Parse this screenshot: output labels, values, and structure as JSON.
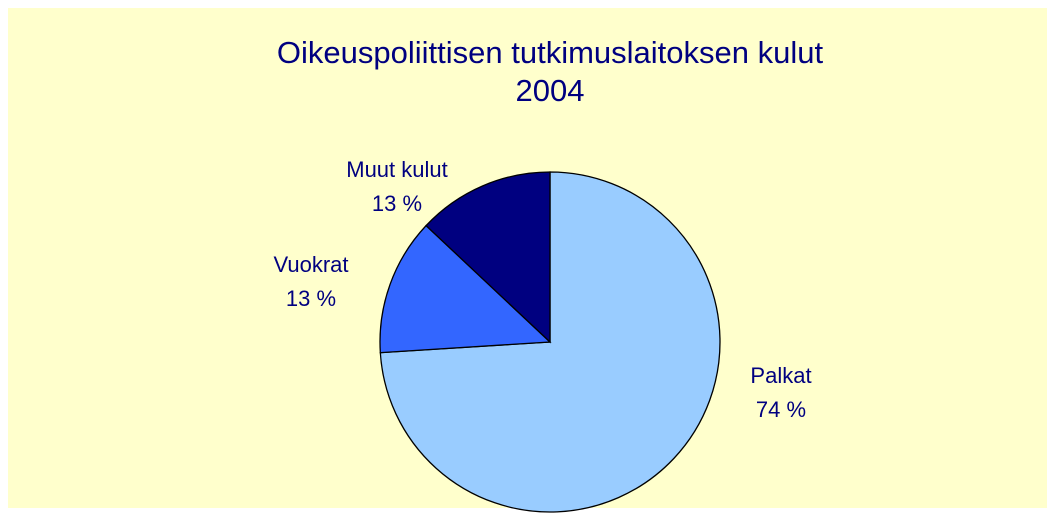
{
  "chart_data": {
    "type": "pie",
    "title": "Oikeuspoliittisen tutkimuslaitoksen kulut 2004",
    "categories": [
      "Palkat",
      "Vuokrat",
      "Muut kulut"
    ],
    "values": [
      74,
      13,
      13
    ],
    "value_labels": [
      "74 %",
      "13 %",
      "13 %"
    ],
    "colors": [
      "#99ccff",
      "#3366ff",
      "#000080"
    ]
  }
}
